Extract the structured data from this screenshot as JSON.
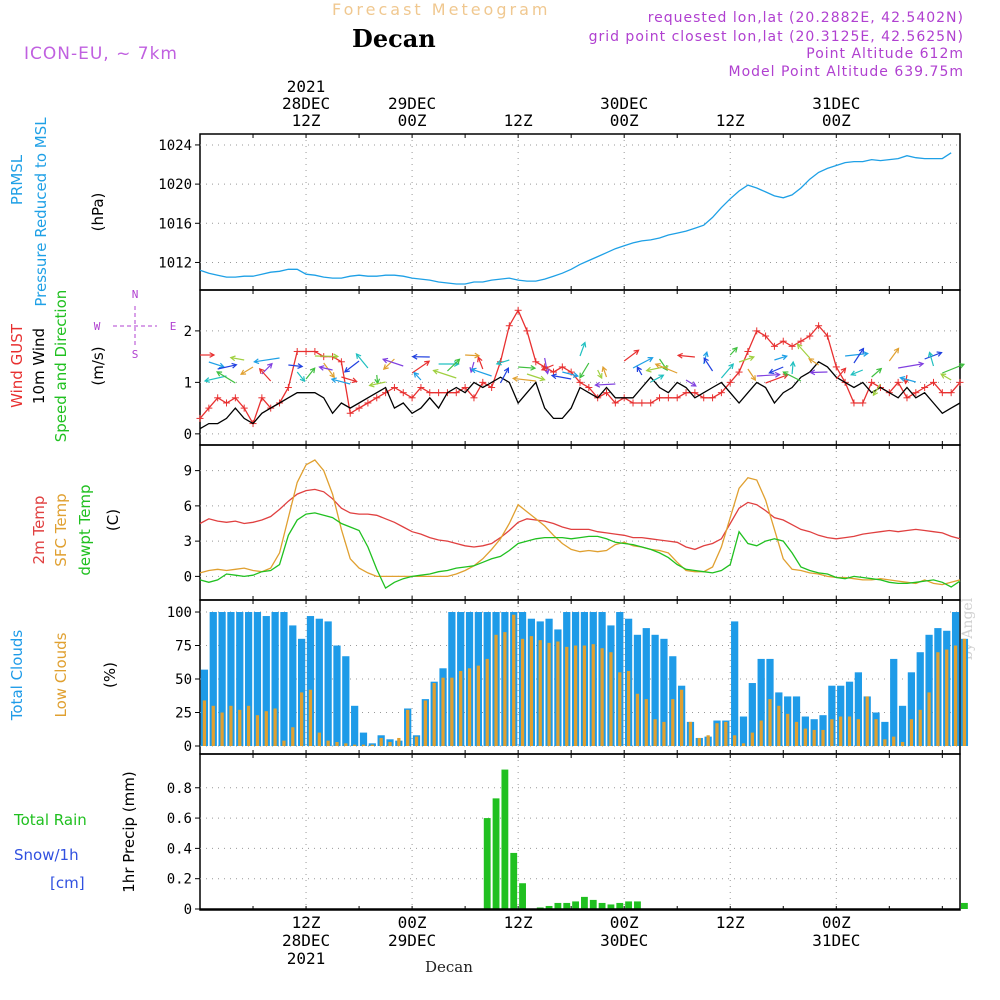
{
  "header": {
    "title": "Forecast Meteogram",
    "location": "Decan",
    "model": "ICON-EU, ~ 7km",
    "requested": "requested lon,lat (20.2882E, 42.5402N)",
    "grid_point": "grid point closest lon,lat (20.3125E, 42.5625N)",
    "point_altitude": "Point Altitude 612m",
    "model_altitude": "Model Point Altitude 639.75m"
  },
  "footer": {
    "location": "Decan",
    "credit": "by Angel"
  },
  "colors": {
    "pressure": "#1ea0e6",
    "gust": "#e83030",
    "wind": "#000000",
    "sfc": "#e0a030",
    "t2m": "#e04040",
    "dewpt": "#20c020",
    "total_clouds": "#1e9be8",
    "low_clouds": "#e0a030",
    "rain": "#20c020",
    "snow": "#3050e0",
    "direction_label": "#b040d0"
  },
  "time_axis": {
    "top_labels": [
      {
        "h": 12,
        "lines": [
          "2021",
          "28DEC",
          "12Z"
        ]
      },
      {
        "h": 24,
        "lines": [
          "29DEC",
          "00Z"
        ]
      },
      {
        "h": 36,
        "lines": [
          "12Z"
        ]
      },
      {
        "h": 48,
        "lines": [
          "30DEC",
          "00Z"
        ]
      },
      {
        "h": 60,
        "lines": [
          "12Z"
        ]
      },
      {
        "h": 72,
        "lines": [
          "31DEC",
          "00Z"
        ]
      }
    ],
    "bottom_labels": [
      {
        "h": 12,
        "lines": [
          "12Z",
          "28DEC",
          "2021"
        ]
      },
      {
        "h": 24,
        "lines": [
          "00Z",
          "29DEC"
        ]
      },
      {
        "h": 36,
        "lines": [
          "12Z"
        ]
      },
      {
        "h": 48,
        "lines": [
          "00Z",
          "30DEC"
        ]
      },
      {
        "h": 60,
        "lines": [
          "12Z"
        ]
      },
      {
        "h": 72,
        "lines": [
          "00Z",
          "31DEC"
        ]
      }
    ]
  },
  "chart_data": [
    {
      "type": "line",
      "title": "PRMSL Pressure Reduced to MSL",
      "ylabel": "(hPa)",
      "ylabels": [
        "PRMSL",
        "Pressure Reduced to MSL"
      ],
      "ylim": [
        1009.8,
        1024.3
      ],
      "yticks": [
        1012,
        1016,
        1020,
        1024
      ],
      "series": [
        {
          "name": "PRMSL",
          "color": "#1ea0e6",
          "values": [
            1011.2,
            1010.9,
            1010.7,
            1010.5,
            1010.5,
            1010.6,
            1010.6,
            1010.8,
            1011.0,
            1011.1,
            1011.3,
            1011.3,
            1010.8,
            1010.7,
            1010.5,
            1010.4,
            1010.4,
            1010.6,
            1010.7,
            1010.6,
            1010.6,
            1010.7,
            1010.7,
            1010.6,
            1010.4,
            1010.3,
            1010.2,
            1010.0,
            1009.9,
            1009.8,
            1009.8,
            1010.0,
            1010.0,
            1010.2,
            1010.3,
            1010.4,
            1010.2,
            1010.1,
            1010.1,
            1010.3,
            1010.6,
            1010.9,
            1011.3,
            1011.8,
            1012.2,
            1012.6,
            1013.0,
            1013.4,
            1013.7,
            1014.0,
            1014.2,
            1014.3,
            1014.5,
            1014.8,
            1015.0,
            1015.2,
            1015.5,
            1015.8,
            1016.6,
            1017.6,
            1018.5,
            1019.3,
            1019.9,
            1019.6,
            1019.2,
            1018.8,
            1018.6,
            1018.9,
            1019.6,
            1020.5,
            1021.2,
            1021.6,
            1021.9,
            1022.2,
            1022.3,
            1022.3,
            1022.5,
            1022.4,
            1022.5,
            1022.6,
            1022.9,
            1022.7,
            1022.6,
            1022.6,
            1022.6,
            1023.2
          ]
        }
      ]
    },
    {
      "type": "line",
      "title": "Wind GUST / 10m Wind Speed and Direction",
      "ylabel": "(m/s)",
      "ylabels": [
        "Wind GUST",
        "10m Wind",
        "Speed and Direction"
      ],
      "compass": [
        "N",
        "S",
        "W",
        "E"
      ],
      "ylim": [
        -0.1,
        2.6
      ],
      "yticks": [
        0,
        1,
        2
      ],
      "series": [
        {
          "name": "Wind GUST",
          "color": "#e83030",
          "values": [
            0.3,
            0.5,
            0.7,
            0.6,
            0.7,
            0.5,
            0.2,
            0.7,
            0.5,
            0.6,
            0.9,
            1.6,
            1.6,
            1.6,
            1.5,
            1.5,
            1.4,
            0.4,
            0.5,
            0.6,
            0.7,
            0.8,
            0.9,
            0.8,
            0.7,
            0.9,
            0.8,
            0.8,
            0.8,
            0.8,
            0.9,
            0.7,
            1.0,
            0.9,
            1.4,
            2.1,
            2.4,
            2.0,
            1.4,
            1.3,
            1.2,
            1.3,
            1.2,
            1.0,
            0.9,
            0.7,
            0.8,
            0.6,
            0.7,
            0.6,
            0.6,
            0.6,
            0.7,
            0.7,
            0.7,
            0.8,
            0.8,
            0.7,
            0.7,
            0.8,
            1.0,
            1.2,
            1.6,
            2.0,
            1.9,
            1.7,
            1.8,
            1.7,
            1.8,
            1.9,
            2.1,
            1.9,
            1.3,
            1.0,
            0.6,
            0.6,
            1.0,
            0.9,
            0.8,
            1.0,
            0.7,
            0.8,
            0.9,
            1.0,
            0.8,
            0.8,
            1.0
          ]
        },
        {
          "name": "10m Wind",
          "color": "#000000",
          "values": [
            0.1,
            0.2,
            0.2,
            0.3,
            0.5,
            0.3,
            0.2,
            0.4,
            0.5,
            0.6,
            0.7,
            0.8,
            0.8,
            0.8,
            0.7,
            0.4,
            0.6,
            0.5,
            0.6,
            0.7,
            0.8,
            0.9,
            0.5,
            0.6,
            0.4,
            0.5,
            0.7,
            0.5,
            0.8,
            0.9,
            0.8,
            1.0,
            0.9,
            1.0,
            1.1,
            1.0,
            0.6,
            0.8,
            1.0,
            0.5,
            0.3,
            0.3,
            0.5,
            0.9,
            0.8,
            0.7,
            0.9,
            0.7,
            0.7,
            0.7,
            0.9,
            1.1,
            0.9,
            0.8,
            1.0,
            0.9,
            0.7,
            0.8,
            0.9,
            1.0,
            0.8,
            0.6,
            0.8,
            1.0,
            0.9,
            0.6,
            0.8,
            0.9,
            1.1,
            1.2,
            1.4,
            1.3,
            1.1,
            1.0,
            0.9,
            1.0,
            0.8,
            0.9,
            0.8,
            0.7,
            0.9,
            0.7,
            0.8,
            0.6,
            0.4,
            0.5,
            0.6
          ]
        }
      ]
    },
    {
      "type": "line",
      "title": "2m Temp / SFC Temp / dewpt Temp",
      "ylabel": "(C)",
      "ylabels": [
        "2m Temp",
        "SFC Temp",
        "dewpt Temp"
      ],
      "ylim": [
        -1.5,
        10.5
      ],
      "yticks": [
        0,
        3,
        6,
        9
      ],
      "series": [
        {
          "name": "2m Temp",
          "color": "#e04040",
          "values": [
            4.5,
            4.9,
            4.7,
            4.6,
            4.7,
            4.5,
            4.6,
            4.8,
            5.1,
            5.7,
            6.4,
            7.0,
            7.3,
            7.4,
            7.2,
            6.6,
            5.8,
            5.4,
            5.3,
            5.3,
            5.2,
            4.9,
            4.6,
            4.2,
            3.8,
            3.6,
            3.3,
            3.1,
            3.0,
            2.8,
            2.6,
            2.5,
            2.6,
            2.8,
            3.3,
            3.9,
            4.6,
            4.9,
            4.8,
            4.7,
            4.5,
            4.2,
            4.0,
            4.0,
            4.0,
            3.8,
            3.7,
            3.6,
            3.5,
            3.3,
            3.3,
            3.2,
            3.1,
            3.0,
            2.9,
            2.5,
            2.3,
            2.6,
            2.8,
            3.2,
            4.5,
            5.8,
            6.3,
            6.1,
            5.6,
            5.0,
            4.8,
            4.4,
            4.0,
            3.8,
            3.5,
            3.3,
            3.2,
            3.3,
            3.4,
            3.6,
            3.7,
            3.8,
            3.9,
            3.8,
            3.9,
            4.0,
            3.9,
            3.8,
            3.7,
            3.4,
            3.2
          ]
        },
        {
          "name": "SFC Temp",
          "color": "#e0a030",
          "values": [
            0.3,
            0.5,
            0.6,
            0.5,
            0.6,
            0.7,
            0.5,
            0.4,
            0.7,
            2.0,
            5.0,
            8.0,
            9.5,
            9.9,
            9.0,
            7.0,
            4.0,
            1.5,
            0.7,
            0.3,
            0.0,
            0.0,
            0.0,
            0.0,
            0.0,
            0.0,
            0.0,
            0.0,
            0.0,
            0.2,
            0.5,
            0.9,
            1.5,
            2.3,
            3.2,
            4.5,
            6.1,
            5.5,
            4.9,
            4.3,
            3.5,
            2.8,
            2.3,
            2.1,
            2.2,
            2.1,
            2.2,
            2.7,
            2.9,
            2.6,
            2.5,
            2.3,
            2.2,
            2.0,
            1.2,
            0.5,
            0.4,
            0.4,
            0.8,
            2.5,
            5.0,
            7.5,
            8.4,
            8.2,
            6.5,
            4.0,
            1.5,
            0.6,
            0.5,
            0.3,
            0.2,
            0.0,
            -0.1,
            -0.1,
            -0.2,
            -0.3,
            -0.3,
            -0.2,
            -0.3,
            -0.4,
            -0.5,
            -0.6,
            -0.3,
            -0.6,
            -0.7,
            -0.5,
            -0.3
          ]
        },
        {
          "name": "dewpt Temp",
          "color": "#20c020",
          "values": [
            -0.3,
            -0.5,
            -0.3,
            0.2,
            0.1,
            0.0,
            0.1,
            0.4,
            0.5,
            1.0,
            3.5,
            4.8,
            5.3,
            5.4,
            5.2,
            5.0,
            4.5,
            4.2,
            3.9,
            2.5,
            0.6,
            -1.0,
            -0.5,
            -0.2,
            0.0,
            0.1,
            0.2,
            0.4,
            0.5,
            0.7,
            0.8,
            0.9,
            1.2,
            1.5,
            1.7,
            2.2,
            2.8,
            3.0,
            3.2,
            3.3,
            3.3,
            3.3,
            3.2,
            3.3,
            3.4,
            3.4,
            3.2,
            2.9,
            2.8,
            2.7,
            2.5,
            2.3,
            2.0,
            1.6,
            1.0,
            0.6,
            0.5,
            0.4,
            0.3,
            0.5,
            1.0,
            3.8,
            2.8,
            2.6,
            3.0,
            3.2,
            3.0,
            2.0,
            0.8,
            0.5,
            0.3,
            0.2,
            -0.1,
            -0.2,
            0.0,
            -0.1,
            -0.2,
            -0.3,
            -0.5,
            -0.6,
            -0.6,
            -0.5,
            -0.4,
            -0.3,
            -0.5,
            -0.9,
            -0.4
          ]
        }
      ]
    },
    {
      "type": "bar",
      "title": "Total Clouds / Low Clouds",
      "ylabel": "(%)",
      "ylabels": [
        "Total Clouds",
        "Low Clouds"
      ],
      "ylim": [
        0,
        103
      ],
      "yticks": [
        0,
        25,
        50,
        75,
        100
      ],
      "series": [
        {
          "name": "Total Clouds",
          "color": "#1e9be8",
          "values": [
            57,
            100,
            100,
            100,
            100,
            100,
            100,
            97,
            100,
            100,
            90,
            80,
            97,
            95,
            93,
            75,
            67,
            30,
            10,
            2,
            8,
            5,
            4,
            28,
            8,
            35,
            48,
            58,
            100,
            100,
            100,
            100,
            100,
            100,
            100,
            100,
            100,
            95,
            93,
            95,
            87,
            100,
            100,
            100,
            100,
            100,
            90,
            100,
            95,
            83,
            88,
            83,
            80,
            67,
            45,
            18,
            6,
            7,
            19,
            19,
            93,
            22,
            47,
            65,
            65,
            40,
            37,
            37,
            22,
            20,
            23,
            45,
            45,
            48,
            55,
            37,
            25,
            18,
            65,
            30,
            55,
            70,
            83,
            88,
            86,
            100,
            80
          ]
        },
        {
          "name": "Low Clouds",
          "color": "#e0a030",
          "values": [
            34,
            30,
            25,
            30,
            27,
            30,
            23,
            26,
            28,
            4,
            14,
            40,
            42,
            10,
            4,
            3,
            2,
            1,
            1,
            1,
            6,
            3,
            6,
            27,
            7,
            34,
            47,
            51,
            51,
            56,
            58,
            60,
            65,
            83,
            85,
            98,
            80,
            82,
            79,
            77,
            78,
            74,
            75,
            75,
            76,
            73,
            70,
            55,
            56,
            39,
            35,
            20,
            18,
            35,
            42,
            18,
            6,
            8,
            17,
            18,
            8,
            2,
            10,
            19,
            35,
            30,
            24,
            18,
            13,
            12,
            12,
            20,
            22,
            22,
            20,
            37,
            20,
            5,
            7,
            3,
            20,
            27,
            40,
            70,
            72,
            75,
            80
          ]
        }
      ]
    },
    {
      "type": "bar",
      "title": "1hr Precip",
      "ylabel": "1hr Precip (mm)",
      "ylabels": [
        "Total  Rain",
        "Snow/1h",
        "[cm]"
      ],
      "ylim": [
        0,
        0.97
      ],
      "yticks": [
        0,
        0.2,
        0.4,
        0.6,
        0.8
      ],
      "series": [
        {
          "name": "Total Rain",
          "color": "#20c020",
          "values": [
            0,
            0,
            0,
            0,
            0,
            0,
            0,
            0,
            0,
            0,
            0,
            0,
            0,
            0,
            0,
            0,
            0,
            0,
            0,
            0,
            0,
            0,
            0,
            0,
            0,
            0,
            0,
            0,
            0,
            0,
            0,
            0,
            0.6,
            0.73,
            0.92,
            0.37,
            0.17,
            0,
            0.01,
            0.02,
            0.04,
            0.04,
            0.05,
            0.08,
            0.06,
            0.04,
            0.03,
            0.04,
            0.05,
            0.05,
            0,
            0,
            0,
            0,
            0,
            0,
            0,
            0,
            0,
            0,
            0,
            0,
            0,
            0,
            0,
            0,
            0,
            0,
            0,
            0,
            0,
            0,
            0,
            0,
            0,
            0,
            0,
            0,
            0,
            0,
            0,
            0,
            0,
            0,
            0,
            0,
            0.04
          ]
        },
        {
          "name": "Snow/1h",
          "color": "#3050e0",
          "values": [
            0,
            0,
            0,
            0,
            0,
            0,
            0,
            0,
            0,
            0,
            0,
            0,
            0,
            0,
            0,
            0,
            0,
            0,
            0,
            0,
            0,
            0,
            0,
            0,
            0,
            0,
            0,
            0,
            0,
            0,
            0,
            0,
            0,
            0,
            0,
            0,
            0,
            0,
            0,
            0,
            0,
            0,
            0,
            0,
            0,
            0,
            0,
            0,
            0,
            0,
            0,
            0,
            0,
            0,
            0,
            0,
            0,
            0,
            0,
            0,
            0,
            0,
            0,
            0,
            0,
            0,
            0,
            0,
            0,
            0,
            0,
            0,
            0,
            0,
            0,
            0,
            0,
            0,
            0,
            0,
            0,
            0,
            0,
            0,
            0,
            0,
            0
          ]
        }
      ]
    }
  ],
  "wind_arrows": {
    "note": "direction in degrees (meteorological, towards), speed m/s",
    "colors": [
      "#e83030",
      "#1ea0e6",
      "#2040e0",
      "#20c0c0",
      "#40c040",
      "#a0d040",
      "#e0a030",
      "#8040e0"
    ]
  }
}
